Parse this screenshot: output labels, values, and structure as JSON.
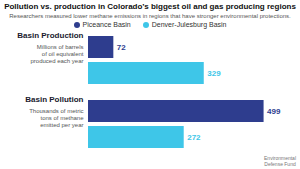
{
  "chart_data": {
    "type": "bar",
    "orientation": "horizontal",
    "title": "Pollution vs. production in Colorado’s biggest oil and gas producing regions",
    "subtitle": "Researchers measured lower methane emissions in regions that have stronger environmental protections.",
    "categories": [
      "Basin Production",
      "Basin Pollution"
    ],
    "series": [
      {
        "name": "Piceance Basin",
        "color": "#2e3d8e",
        "values": [
          72,
          499
        ]
      },
      {
        "name": "Denver-Julesburg Basin",
        "color": "#3ec6e8",
        "values": [
          329,
          272
        ]
      }
    ],
    "annotations": [
      {
        "text": "Millions of barrels\nof oil equivalent\nproduced each year",
        "category": "Basin Production"
      },
      {
        "text": "Thousands of metric\ntons of methane\nemitted per year",
        "category": "Basin Pollution"
      },
      {
        "text": "Environmental\nDefense Fund"
      }
    ],
    "xlim": [
      0,
      540
    ],
    "tick_labels": false,
    "grid": false,
    "data_labels": true,
    "legend": "top"
  }
}
